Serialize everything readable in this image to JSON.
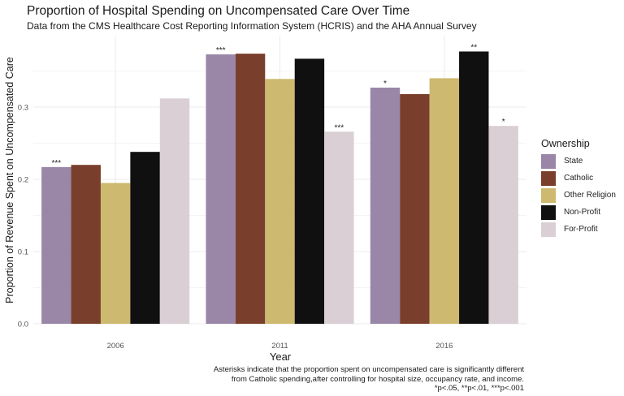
{
  "chart_data": {
    "type": "bar",
    "title": "Proportion of Hospital Spending on Uncompensated Care Over Time",
    "subtitle": "Data from the CMS Healthcare Cost Reporting Information System (HCRIS) and the AHA Annual Survey",
    "xlabel": "Year",
    "ylabel": "Proportion of Revenue Spent on Uncompensated Care",
    "categories": [
      "2006",
      "2011",
      "2016"
    ],
    "ylim": [
      0,
      0.4
    ],
    "yticks": [
      0.0,
      0.1,
      0.2,
      0.3
    ],
    "ytick_labels": [
      "0.0",
      "0.1",
      "0.2",
      "0.3"
    ],
    "grid": true,
    "legend_title": "Ownership",
    "legend_position": "right",
    "series": [
      {
        "name": "State",
        "color": "#9a86a6",
        "values": [
          0.217,
          0.373,
          0.327
        ],
        "annotations": [
          "***",
          "***",
          "*"
        ]
      },
      {
        "name": "Catholic",
        "color": "#7a3f2c",
        "values": [
          0.22,
          0.374,
          0.318
        ],
        "annotations": [
          "",
          "",
          ""
        ]
      },
      {
        "name": "Other Religion",
        "color": "#cdb96f",
        "values": [
          0.195,
          0.339,
          0.34
        ],
        "annotations": [
          "",
          "",
          ""
        ]
      },
      {
        "name": "Non-Profit",
        "color": "#111010",
        "values": [
          0.238,
          0.367,
          0.377
        ],
        "annotations": [
          "",
          "",
          "**"
        ]
      },
      {
        "name": "For-Profit",
        "color": "#d9cfd4",
        "values": [
          0.312,
          0.266,
          0.274
        ],
        "annotations": [
          "",
          "***",
          "*"
        ]
      }
    ],
    "caption": [
      "Asterisks indicate that the proportion spent on uncompensated care is significantly different",
      "from Catholic spending,after controlling for hospital size, occupancy rate, and income.",
      "*p<.05, **p<.01, ***p<.001"
    ]
  }
}
